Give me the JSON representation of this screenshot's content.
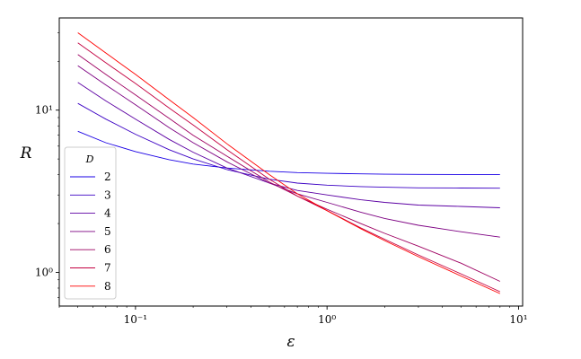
{
  "chart_data": {
    "type": "line",
    "xlabel": "ε",
    "ylabel": "R",
    "xscale": "log",
    "yscale": "log",
    "xlim": [
      0.04,
      10.5
    ],
    "ylim": [
      0.62,
      37
    ],
    "xticks": [
      {
        "value": 0.1,
        "label": "10⁻¹"
      },
      {
        "value": 1,
        "label": "10⁰"
      },
      {
        "value": 10,
        "label": "10¹"
      }
    ],
    "yticks": [
      {
        "value": 1,
        "label": "10⁰"
      },
      {
        "value": 10,
        "label": "10¹"
      }
    ],
    "grid": false,
    "legend": {
      "title": "D",
      "placement": "lower-left"
    },
    "series": [
      {
        "name": "2",
        "color": "#1a00e5",
        "x": [
          0.05,
          0.07,
          0.1,
          0.15,
          0.2,
          0.3,
          0.5,
          0.7,
          1,
          1.5,
          2,
          3,
          5,
          8
        ],
        "y": [
          7.4,
          6.3,
          5.55,
          4.95,
          4.65,
          4.4,
          4.2,
          4.12,
          4.08,
          4.05,
          4.03,
          4.02,
          4.01,
          4.0
        ]
      },
      {
        "name": "3",
        "color": "#3b00c4",
        "x": [
          0.05,
          0.07,
          0.1,
          0.15,
          0.2,
          0.3,
          0.5,
          0.7,
          1,
          1.5,
          2,
          3,
          5,
          8
        ],
        "y": [
          11.0,
          8.8,
          7.1,
          5.7,
          5.0,
          4.3,
          3.75,
          3.55,
          3.45,
          3.38,
          3.35,
          3.32,
          3.31,
          3.3
        ]
      },
      {
        "name": "4",
        "color": "#5c00a3",
        "x": [
          0.05,
          0.07,
          0.1,
          0.15,
          0.2,
          0.3,
          0.5,
          0.7,
          1,
          1.5,
          2,
          3,
          5,
          8
        ],
        "y": [
          14.8,
          11.4,
          8.8,
          6.6,
          5.5,
          4.4,
          3.55,
          3.2,
          3.0,
          2.8,
          2.7,
          2.6,
          2.55,
          2.5
        ]
      },
      {
        "name": "5",
        "color": "#7d0082",
        "x": [
          0.05,
          0.07,
          0.1,
          0.15,
          0.2,
          0.3,
          0.5,
          0.7,
          1,
          1.5,
          2,
          3,
          5,
          8
        ],
        "y": [
          18.8,
          14.3,
          10.8,
          7.8,
          6.3,
          4.8,
          3.55,
          3.05,
          2.7,
          2.35,
          2.15,
          1.95,
          1.78,
          1.65
        ]
      },
      {
        "name": "6",
        "color": "#9e0061",
        "x": [
          0.05,
          0.07,
          0.1,
          0.15,
          0.2,
          0.3,
          0.5,
          0.7,
          1,
          1.5,
          2,
          3,
          5,
          8
        ],
        "y": [
          22.0,
          16.6,
          12.4,
          8.9,
          7.0,
          5.2,
          3.6,
          2.95,
          2.45,
          2.0,
          1.74,
          1.45,
          1.14,
          0.88
        ]
      },
      {
        "name": "7",
        "color": "#c30040",
        "x": [
          0.05,
          0.07,
          0.1,
          0.15,
          0.2,
          0.3,
          0.5,
          0.7,
          1,
          1.5,
          2,
          3,
          5,
          8
        ],
        "y": [
          26.0,
          19.6,
          14.6,
          10.3,
          8.1,
          5.7,
          3.75,
          2.95,
          2.4,
          1.88,
          1.6,
          1.28,
          0.98,
          0.76
        ]
      },
      {
        "name": "8",
        "color": "#ff0000",
        "x": [
          0.05,
          0.07,
          0.1,
          0.15,
          0.2,
          0.3,
          0.5,
          0.7,
          1,
          1.5,
          2,
          3,
          5,
          8
        ],
        "y": [
          30.0,
          22.5,
          16.6,
          11.6,
          9.0,
          6.2,
          4.0,
          3.05,
          2.4,
          1.86,
          1.57,
          1.25,
          0.95,
          0.74
        ]
      }
    ]
  }
}
